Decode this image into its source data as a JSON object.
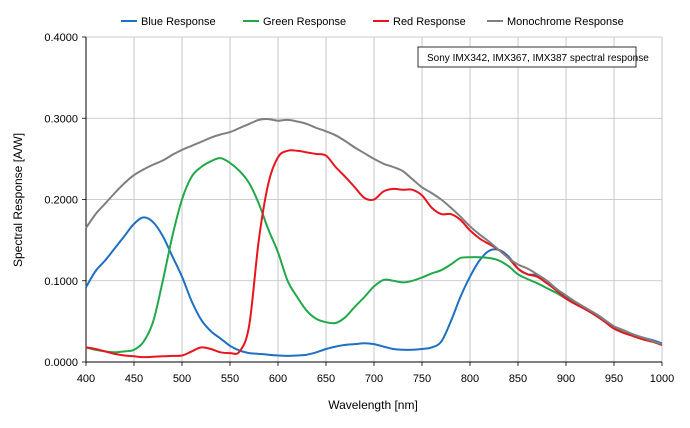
{
  "chart_data": {
    "type": "line",
    "xlabel": "Wavelength [nm]",
    "ylabel": "Spectral Response [A/W]",
    "xlim": [
      400,
      1000
    ],
    "ylim": [
      0,
      0.4
    ],
    "x_ticks": [
      "400",
      "450",
      "500",
      "550",
      "600",
      "650",
      "700",
      "750",
      "800",
      "850",
      "900",
      "950",
      "1000"
    ],
    "y_ticks": [
      "0.0000",
      "0.1000",
      "0.2000",
      "0.3000",
      "0.4000"
    ],
    "x_tick_values": [
      400,
      450,
      500,
      550,
      600,
      650,
      700,
      750,
      800,
      850,
      900,
      950,
      1000
    ],
    "y_tick_values": [
      0,
      0.1,
      0.2,
      0.3,
      0.4
    ],
    "grid": true,
    "legend_position": "top",
    "annotation": "Sony IMX342, IMX367, IMX387 spectral response",
    "series": [
      {
        "name": "Blue Response",
        "color": "#1f6fc2",
        "points": [
          [
            400,
            0.092
          ],
          [
            410,
            0.112
          ],
          [
            420,
            0.125
          ],
          [
            430,
            0.14
          ],
          [
            440,
            0.155
          ],
          [
            450,
            0.17
          ],
          [
            460,
            0.178
          ],
          [
            470,
            0.172
          ],
          [
            480,
            0.155
          ],
          [
            490,
            0.13
          ],
          [
            500,
            0.105
          ],
          [
            510,
            0.075
          ],
          [
            520,
            0.052
          ],
          [
            530,
            0.038
          ],
          [
            540,
            0.029
          ],
          [
            550,
            0.02
          ],
          [
            560,
            0.014
          ],
          [
            570,
            0.011
          ],
          [
            580,
            0.01
          ],
          [
            590,
            0.009
          ],
          [
            600,
            0.008
          ],
          [
            610,
            0.0075
          ],
          [
            620,
            0.008
          ],
          [
            630,
            0.009
          ],
          [
            640,
            0.012
          ],
          [
            650,
            0.016
          ],
          [
            660,
            0.019
          ],
          [
            670,
            0.021
          ],
          [
            680,
            0.022
          ],
          [
            690,
            0.023
          ],
          [
            700,
            0.022
          ],
          [
            710,
            0.019
          ],
          [
            720,
            0.016
          ],
          [
            730,
            0.015
          ],
          [
            740,
            0.015
          ],
          [
            750,
            0.016
          ],
          [
            760,
            0.018
          ],
          [
            770,
            0.025
          ],
          [
            780,
            0.05
          ],
          [
            790,
            0.08
          ],
          [
            800,
            0.105
          ],
          [
            810,
            0.125
          ],
          [
            820,
            0.137
          ],
          [
            830,
            0.138
          ],
          [
            840,
            0.13
          ],
          [
            850,
            0.115
          ],
          [
            860,
            0.108
          ],
          [
            870,
            0.107
          ],
          [
            880,
            0.1
          ],
          [
            890,
            0.09
          ],
          [
            900,
            0.08
          ],
          [
            910,
            0.072
          ],
          [
            920,
            0.066
          ],
          [
            930,
            0.06
          ],
          [
            940,
            0.052
          ],
          [
            950,
            0.043
          ],
          [
            960,
            0.039
          ],
          [
            970,
            0.034
          ],
          [
            980,
            0.03
          ],
          [
            990,
            0.027
          ],
          [
            1000,
            0.023
          ]
        ]
      },
      {
        "name": "Green Response",
        "color": "#22a84a",
        "points": [
          [
            400,
            0.018
          ],
          [
            410,
            0.015
          ],
          [
            420,
            0.013
          ],
          [
            430,
            0.012
          ],
          [
            440,
            0.013
          ],
          [
            450,
            0.015
          ],
          [
            460,
            0.025
          ],
          [
            470,
            0.05
          ],
          [
            480,
            0.1
          ],
          [
            490,
            0.155
          ],
          [
            500,
            0.2
          ],
          [
            510,
            0.228
          ],
          [
            520,
            0.24
          ],
          [
            530,
            0.247
          ],
          [
            540,
            0.251
          ],
          [
            550,
            0.245
          ],
          [
            560,
            0.235
          ],
          [
            570,
            0.22
          ],
          [
            580,
            0.195
          ],
          [
            590,
            0.163
          ],
          [
            600,
            0.135
          ],
          [
            610,
            0.1
          ],
          [
            620,
            0.08
          ],
          [
            630,
            0.063
          ],
          [
            640,
            0.053
          ],
          [
            650,
            0.049
          ],
          [
            660,
            0.048
          ],
          [
            670,
            0.055
          ],
          [
            680,
            0.068
          ],
          [
            690,
            0.08
          ],
          [
            700,
            0.093
          ],
          [
            710,
            0.101
          ],
          [
            720,
            0.1
          ],
          [
            730,
            0.098
          ],
          [
            740,
            0.1
          ],
          [
            750,
            0.104
          ],
          [
            760,
            0.109
          ],
          [
            770,
            0.113
          ],
          [
            780,
            0.12
          ],
          [
            790,
            0.128
          ],
          [
            800,
            0.129
          ],
          [
            810,
            0.129
          ],
          [
            820,
            0.128
          ],
          [
            830,
            0.125
          ],
          [
            840,
            0.118
          ],
          [
            850,
            0.108
          ],
          [
            860,
            0.102
          ],
          [
            870,
            0.097
          ],
          [
            880,
            0.091
          ],
          [
            890,
            0.085
          ],
          [
            900,
            0.078
          ],
          [
            910,
            0.072
          ],
          [
            920,
            0.065
          ],
          [
            930,
            0.058
          ],
          [
            940,
            0.05
          ],
          [
            950,
            0.042
          ],
          [
            960,
            0.036
          ],
          [
            970,
            0.032
          ],
          [
            980,
            0.028
          ],
          [
            990,
            0.025
          ],
          [
            1000,
            0.021
          ]
        ]
      },
      {
        "name": "Red Response",
        "color": "#e8141e",
        "points": [
          [
            400,
            0.018
          ],
          [
            410,
            0.016
          ],
          [
            420,
            0.013
          ],
          [
            430,
            0.01
          ],
          [
            440,
            0.008
          ],
          [
            450,
            0.007
          ],
          [
            460,
            0.006
          ],
          [
            470,
            0.0065
          ],
          [
            480,
            0.007
          ],
          [
            490,
            0.0075
          ],
          [
            500,
            0.008
          ],
          [
            510,
            0.013
          ],
          [
            520,
            0.018
          ],
          [
            530,
            0.016
          ],
          [
            540,
            0.012
          ],
          [
            550,
            0.011
          ],
          [
            560,
            0.013
          ],
          [
            570,
            0.045
          ],
          [
            580,
            0.15
          ],
          [
            590,
            0.22
          ],
          [
            600,
            0.252
          ],
          [
            610,
            0.26
          ],
          [
            620,
            0.26
          ],
          [
            630,
            0.258
          ],
          [
            640,
            0.256
          ],
          [
            650,
            0.254
          ],
          [
            660,
            0.24
          ],
          [
            670,
            0.228
          ],
          [
            680,
            0.215
          ],
          [
            690,
            0.202
          ],
          [
            700,
            0.2
          ],
          [
            710,
            0.21
          ],
          [
            720,
            0.213
          ],
          [
            730,
            0.212
          ],
          [
            740,
            0.212
          ],
          [
            750,
            0.205
          ],
          [
            760,
            0.19
          ],
          [
            770,
            0.182
          ],
          [
            780,
            0.182
          ],
          [
            790,
            0.175
          ],
          [
            800,
            0.162
          ],
          [
            810,
            0.152
          ],
          [
            820,
            0.145
          ],
          [
            830,
            0.138
          ],
          [
            840,
            0.128
          ],
          [
            850,
            0.115
          ],
          [
            860,
            0.108
          ],
          [
            870,
            0.105
          ],
          [
            880,
            0.097
          ],
          [
            890,
            0.088
          ],
          [
            900,
            0.078
          ],
          [
            910,
            0.071
          ],
          [
            920,
            0.065
          ],
          [
            930,
            0.058
          ],
          [
            940,
            0.05
          ],
          [
            950,
            0.041
          ],
          [
            960,
            0.036
          ],
          [
            970,
            0.032
          ],
          [
            980,
            0.028
          ],
          [
            990,
            0.025
          ],
          [
            1000,
            0.021
          ]
        ]
      },
      {
        "name": "Monochrome Response",
        "color": "#7f7f7f",
        "points": [
          [
            400,
            0.165
          ],
          [
            410,
            0.182
          ],
          [
            420,
            0.195
          ],
          [
            430,
            0.208
          ],
          [
            440,
            0.22
          ],
          [
            450,
            0.23
          ],
          [
            460,
            0.237
          ],
          [
            470,
            0.243
          ],
          [
            480,
            0.248
          ],
          [
            490,
            0.255
          ],
          [
            500,
            0.261
          ],
          [
            510,
            0.266
          ],
          [
            520,
            0.271
          ],
          [
            530,
            0.276
          ],
          [
            540,
            0.28
          ],
          [
            550,
            0.283
          ],
          [
            560,
            0.288
          ],
          [
            570,
            0.293
          ],
          [
            580,
            0.298
          ],
          [
            590,
            0.299
          ],
          [
            600,
            0.297
          ],
          [
            610,
            0.298
          ],
          [
            620,
            0.296
          ],
          [
            630,
            0.293
          ],
          [
            640,
            0.288
          ],
          [
            650,
            0.284
          ],
          [
            660,
            0.279
          ],
          [
            670,
            0.272
          ],
          [
            680,
            0.264
          ],
          [
            690,
            0.257
          ],
          [
            700,
            0.25
          ],
          [
            710,
            0.244
          ],
          [
            720,
            0.24
          ],
          [
            730,
            0.235
          ],
          [
            740,
            0.225
          ],
          [
            750,
            0.215
          ],
          [
            760,
            0.208
          ],
          [
            770,
            0.2
          ],
          [
            780,
            0.19
          ],
          [
            790,
            0.179
          ],
          [
            800,
            0.167
          ],
          [
            810,
            0.157
          ],
          [
            820,
            0.148
          ],
          [
            830,
            0.138
          ],
          [
            840,
            0.128
          ],
          [
            850,
            0.12
          ],
          [
            860,
            0.115
          ],
          [
            870,
            0.108
          ],
          [
            880,
            0.1
          ],
          [
            890,
            0.09
          ],
          [
            900,
            0.082
          ],
          [
            910,
            0.074
          ],
          [
            920,
            0.067
          ],
          [
            930,
            0.06
          ],
          [
            940,
            0.052
          ],
          [
            950,
            0.044
          ],
          [
            960,
            0.039
          ],
          [
            970,
            0.034
          ],
          [
            980,
            0.03
          ],
          [
            990,
            0.026
          ],
          [
            1000,
            0.022
          ]
        ]
      }
    ]
  }
}
